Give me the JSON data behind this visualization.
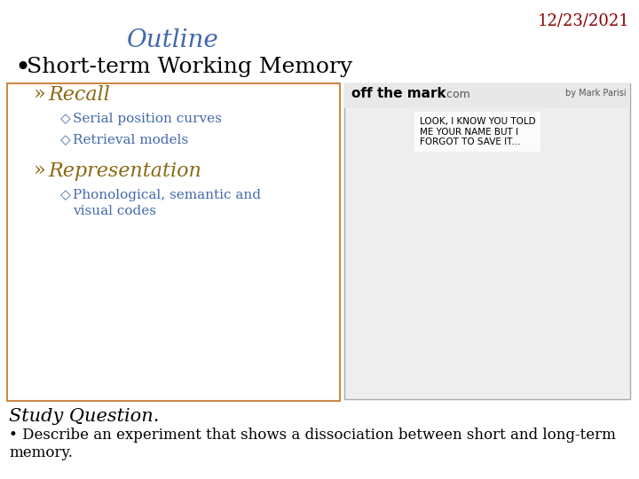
{
  "background_color": "#ffffff",
  "date_text": "12/23/2021",
  "date_color": "#8B0000",
  "date_fontsize": 13,
  "title_text": "Outline",
  "title_color": "#4169AA",
  "title_fontsize": 20,
  "bullet1_text": "Short-term Working Memory",
  "bullet1_color": "#000000",
  "bullet1_fontsize": 18,
  "sub1_color": "#8B6914",
  "sub1_fontsize": 16,
  "sub2_color": "#4169AA",
  "sub2_fontsize": 11,
  "box_edgecolor": "#CC8844",
  "study_text": "Study Question.",
  "study_color": "#000000",
  "study_fontsize": 15,
  "desc_line1": "• Describe an experiment that shows a dissociation between short and long-term",
  "desc_line2": "memory.",
  "desc_color": "#000000",
  "desc_fontsize": 12
}
